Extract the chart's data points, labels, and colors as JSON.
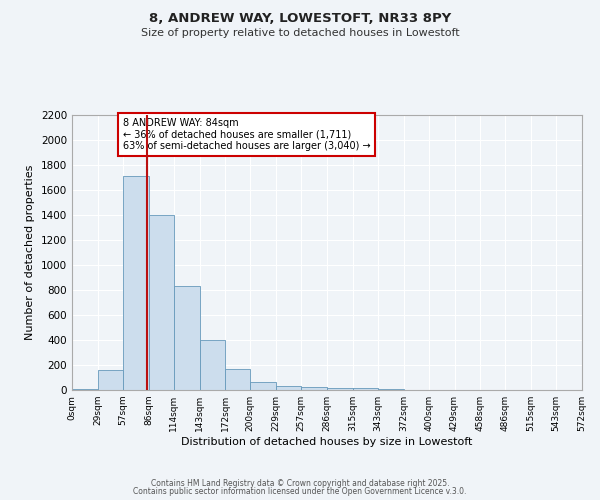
{
  "title1": "8, ANDREW WAY, LOWESTOFT, NR33 8PY",
  "title2": "Size of property relative to detached houses in Lowestoft",
  "xlabel": "Distribution of detached houses by size in Lowestoft",
  "ylabel": "Number of detached properties",
  "bar_color": "#ccdded",
  "bar_edge_color": "#6699bb",
  "background_color": "#f0f4f8",
  "bin_edges": [
    0,
    29,
    57,
    86,
    114,
    143,
    172,
    200,
    229,
    257,
    286,
    315,
    343,
    372,
    400,
    429,
    458,
    486,
    515,
    543,
    572
  ],
  "bar_heights": [
    10,
    160,
    1710,
    1400,
    830,
    400,
    165,
    65,
    35,
    25,
    20,
    15,
    5,
    3,
    2,
    1,
    0,
    0,
    0,
    0
  ],
  "tick_labels": [
    "0sqm",
    "29sqm",
    "57sqm",
    "86sqm",
    "114sqm",
    "143sqm",
    "172sqm",
    "200sqm",
    "229sqm",
    "257sqm",
    "286sqm",
    "315sqm",
    "343sqm",
    "372sqm",
    "400sqm",
    "429sqm",
    "458sqm",
    "486sqm",
    "515sqm",
    "543sqm",
    "572sqm"
  ],
  "vline_x": 84,
  "vline_color": "#bb1111",
  "annotation_text": "8 ANDREW WAY: 84sqm\n← 36% of detached houses are smaller (1,711)\n63% of semi-detached houses are larger (3,040) →",
  "annotation_box_color": "#cc0000",
  "ylim": [
    0,
    2200
  ],
  "yticks": [
    0,
    200,
    400,
    600,
    800,
    1000,
    1200,
    1400,
    1600,
    1800,
    2000,
    2200
  ],
  "grid_color": "#ffffff",
  "footer_text1": "Contains HM Land Registry data © Crown copyright and database right 2025.",
  "footer_text2": "Contains public sector information licensed under the Open Government Licence v.3.0."
}
